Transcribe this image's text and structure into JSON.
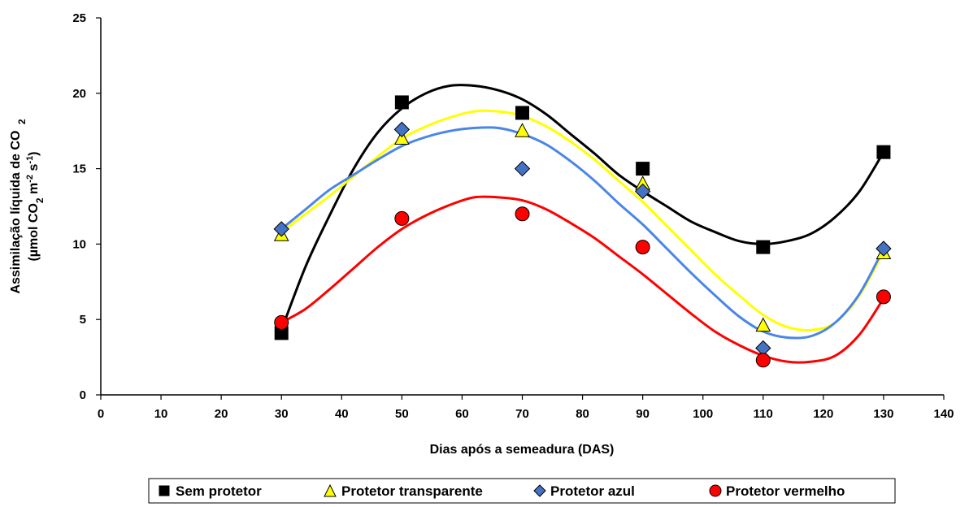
{
  "chart_data": {
    "type": "scatter",
    "xlabel": "Dias após a semeadura (DAS)",
    "ylabel_line1": "Assimilação líquida de CO",
    "ylabel_line1_sub": "2",
    "ylabel_line2_parts": [
      "(µmol CO",
      "2",
      " m",
      "-2",
      " s",
      "-1",
      ")"
    ],
    "xlim": [
      0,
      140
    ],
    "ylim": [
      0,
      25
    ],
    "x_ticks": [
      0,
      10,
      20,
      30,
      40,
      50,
      60,
      70,
      80,
      90,
      100,
      110,
      120,
      130,
      140
    ],
    "y_ticks": [
      0,
      5,
      10,
      15,
      20,
      25
    ],
    "grid": false,
    "legend_position": "bottom",
    "series": [
      {
        "name": "Sem protetor",
        "marker": "square",
        "color": "#000000",
        "marker_color": "#000000",
        "line_color": "#000000",
        "x": [
          30,
          50,
          70,
          90,
          110,
          130
        ],
        "y": [
          4.1,
          19.4,
          18.7,
          15.0,
          9.8,
          16.1
        ],
        "trend_curve": [
          [
            30,
            4.3
          ],
          [
            34,
            8.5
          ],
          [
            38,
            11.9
          ],
          [
            42,
            15.0
          ],
          [
            46,
            17.4
          ],
          [
            50,
            19.0
          ],
          [
            54,
            20.0
          ],
          [
            58,
            20.5
          ],
          [
            62,
            20.5
          ],
          [
            66,
            20.2
          ],
          [
            70,
            19.6
          ],
          [
            74,
            18.6
          ],
          [
            78,
            17.3
          ],
          [
            82,
            16.0
          ],
          [
            86,
            14.6
          ],
          [
            90,
            13.5
          ],
          [
            94,
            12.5
          ],
          [
            98,
            11.5
          ],
          [
            102,
            10.8
          ],
          [
            106,
            10.2
          ],
          [
            110,
            10.0
          ],
          [
            114,
            10.2
          ],
          [
            118,
            10.7
          ],
          [
            122,
            11.8
          ],
          [
            126,
            13.5
          ],
          [
            130,
            16.1
          ]
        ]
      },
      {
        "name": "Protetor transparente",
        "marker": "triangle",
        "color": "#ffff00",
        "marker_color": "#ffff00",
        "line_color": "#ffff00",
        "x": [
          30,
          50,
          70,
          90,
          110,
          130
        ],
        "y": [
          10.6,
          17.0,
          17.5,
          14.0,
          4.6,
          9.4
        ],
        "trend_curve": [
          [
            30,
            10.8
          ],
          [
            34,
            12.0
          ],
          [
            38,
            13.2
          ],
          [
            42,
            14.5
          ],
          [
            46,
            15.8
          ],
          [
            50,
            17.0
          ],
          [
            54,
            17.8
          ],
          [
            58,
            18.4
          ],
          [
            62,
            18.8
          ],
          [
            66,
            18.8
          ],
          [
            70,
            18.5
          ],
          [
            74,
            17.8
          ],
          [
            78,
            16.8
          ],
          [
            82,
            15.6
          ],
          [
            86,
            14.2
          ],
          [
            90,
            12.8
          ],
          [
            94,
            11.2
          ],
          [
            98,
            9.6
          ],
          [
            102,
            8.0
          ],
          [
            106,
            6.6
          ],
          [
            110,
            5.3
          ],
          [
            114,
            4.5
          ],
          [
            118,
            4.3
          ],
          [
            122,
            4.8
          ],
          [
            126,
            6.6
          ],
          [
            130,
            9.5
          ]
        ]
      },
      {
        "name": "Protetor azul",
        "marker": "diamond",
        "color": "#4472c4",
        "marker_color": "#4472c4",
        "line_color": "#4a86e8",
        "x": [
          30,
          50,
          70,
          90,
          110,
          130
        ],
        "y": [
          11.0,
          17.6,
          15.0,
          13.5,
          3.1,
          9.7
        ],
        "trend_curve": [
          [
            30,
            11.0
          ],
          [
            34,
            12.3
          ],
          [
            38,
            13.6
          ],
          [
            42,
            14.6
          ],
          [
            46,
            15.6
          ],
          [
            50,
            16.5
          ],
          [
            54,
            17.1
          ],
          [
            58,
            17.5
          ],
          [
            62,
            17.7
          ],
          [
            66,
            17.7
          ],
          [
            70,
            17.3
          ],
          [
            74,
            16.6
          ],
          [
            78,
            15.5
          ],
          [
            82,
            14.2
          ],
          [
            86,
            12.7
          ],
          [
            90,
            11.3
          ],
          [
            94,
            9.7
          ],
          [
            98,
            8.1
          ],
          [
            102,
            6.6
          ],
          [
            106,
            5.2
          ],
          [
            110,
            4.2
          ],
          [
            114,
            3.8
          ],
          [
            118,
            3.9
          ],
          [
            122,
            4.8
          ],
          [
            126,
            6.7
          ],
          [
            130,
            9.7
          ]
        ]
      },
      {
        "name": "Protetor vermelho",
        "marker": "circle",
        "color": "#ff0000",
        "marker_color": "#ff0000",
        "line_color": "#ff0000",
        "x": [
          30,
          50,
          70,
          90,
          110,
          130
        ],
        "y": [
          4.8,
          11.7,
          12.0,
          9.8,
          2.3,
          6.5
        ],
        "trend_curve": [
          [
            30,
            4.8
          ],
          [
            34,
            5.7
          ],
          [
            38,
            7.0
          ],
          [
            42,
            8.4
          ],
          [
            46,
            9.8
          ],
          [
            50,
            11.0
          ],
          [
            54,
            11.9
          ],
          [
            58,
            12.6
          ],
          [
            62,
            13.1
          ],
          [
            66,
            13.1
          ],
          [
            70,
            12.9
          ],
          [
            74,
            12.3
          ],
          [
            78,
            11.4
          ],
          [
            82,
            10.4
          ],
          [
            86,
            9.2
          ],
          [
            90,
            8.0
          ],
          [
            94,
            6.7
          ],
          [
            98,
            5.4
          ],
          [
            102,
            4.2
          ],
          [
            106,
            3.3
          ],
          [
            110,
            2.6
          ],
          [
            114,
            2.2
          ],
          [
            118,
            2.2
          ],
          [
            122,
            2.6
          ],
          [
            126,
            4.0
          ],
          [
            130,
            6.4
          ]
        ]
      }
    ]
  }
}
